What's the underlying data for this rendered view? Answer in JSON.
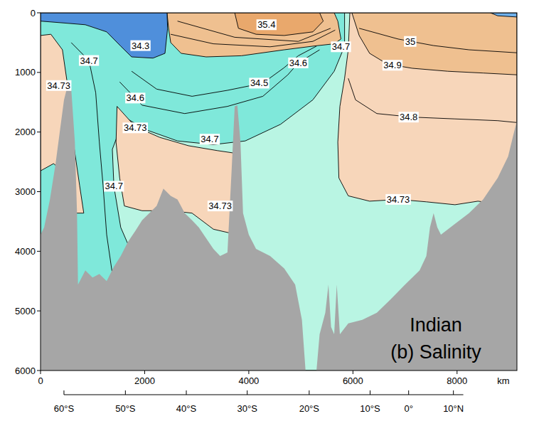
{
  "chart_data": {
    "type": "contour",
    "title": "Indian",
    "subtitle": "(b) Salinity",
    "x_label": "km",
    "xlim": [
      0,
      9150
    ],
    "xticks": [
      0,
      2000,
      4000,
      6000,
      8000
    ],
    "ylim": [
      6000,
      0
    ],
    "yticks": [
      0,
      1000,
      2000,
      3000,
      4000,
      5000,
      6000
    ],
    "x2lim": [
      450,
      8120
    ],
    "x2ticks": [
      {
        "value": 450,
        "label": "60°S"
      },
      {
        "value": 1630,
        "label": "50°S"
      },
      {
        "value": 2800,
        "label": "40°S"
      },
      {
        "value": 3970,
        "label": "30°S"
      },
      {
        "value": 5160,
        "label": "20°S"
      },
      {
        "value": 6330,
        "label": "10°S"
      },
      {
        "value": 7070,
        "label": "0°"
      },
      {
        "value": 7930,
        "label": "10°N"
      }
    ],
    "series": [
      {
        "type": "polygon",
        "color": "#b9f5e3",
        "x": [
          0,
          9150,
          9150,
          0
        ],
        "y": [
          0,
          0,
          6000,
          6000
        ]
      },
      {
        "type": "polygon",
        "color": "#7fe8da",
        "x": [
          0,
          5840,
          5840,
          5640,
          5230,
          4610,
          3930,
          3320,
          2630,
          2020,
          1610,
          1380,
          1410,
          1540,
          1750,
          1820,
          0
        ],
        "y": [
          0,
          0,
          560,
          980,
          1460,
          1870,
          2150,
          2210,
          2150,
          1960,
          1750,
          2290,
          2910,
          3600,
          4020,
          6000,
          6000
        ]
      },
      {
        "type": "polygon",
        "color": "#f7d6ba",
        "x": [
          1470,
          1820,
          2290,
          2840,
          3390,
          3770,
          3770,
          3320,
          2910,
          2500,
          1950,
          1610,
          1520,
          1450
        ],
        "y": [
          1570,
          1910,
          2090,
          2230,
          2310,
          2360,
          3720,
          3630,
          3360,
          3320,
          3320,
          3240,
          2770,
          2170
        ]
      },
      {
        "type": "polygon",
        "color": "#f7d6ba",
        "x": [
          0,
          200,
          420,
          520,
          590,
          750,
          830,
          660,
          420,
          250,
          0
        ],
        "y": [
          380,
          360,
          620,
          1220,
          1930,
          2890,
          3360,
          3360,
          2650,
          2530,
          2650
        ]
      },
      {
        "type": "polygon",
        "color": "#f7d6ba",
        "x": [
          5940,
          9150,
          9150,
          8400,
          7960,
          7410,
          6870,
          6320,
          5910,
          5730,
          5710,
          5750,
          5840,
          5910
        ],
        "y": [
          0,
          0,
          3240,
          3160,
          3220,
          3170,
          3130,
          3160,
          3070,
          2770,
          2170,
          1570,
          1100,
          620
        ]
      },
      {
        "type": "polygon",
        "color": "#efc090",
        "x": [
          5980,
          9150,
          9150,
          8500,
          7820,
          7140,
          6660,
          6320,
          6120
        ],
        "y": [
          0,
          0,
          1040,
          1010,
          980,
          930,
          860,
          680,
          380
        ]
      },
      {
        "type": "polygon",
        "color": "#efc090",
        "x": [
          2430,
          5640,
          5710,
          5770,
          5640,
          5230,
          4680,
          3860,
          3180,
          2700,
          2500,
          2460
        ],
        "y": [
          0,
          0,
          140,
          440,
          520,
          560,
          620,
          720,
          740,
          680,
          500,
          260
        ]
      },
      {
        "type": "polygon",
        "color": "#e9a86c",
        "x": [
          3730,
          5360,
          5430,
          5230,
          4680,
          4140,
          3800
        ],
        "y": [
          0,
          0,
          140,
          320,
          380,
          360,
          260
        ]
      },
      {
        "type": "polygon",
        "color": "#4f8fdb",
        "x": [
          0,
          2430,
          2440,
          2390,
          2160,
          1750,
          1540,
          1270,
          860,
          450,
          0
        ],
        "y": [
          0,
          0,
          260,
          680,
          760,
          740,
          560,
          320,
          200,
          170,
          140
        ]
      },
      {
        "type": "polygon",
        "color": "#6fb0ea",
        "x": [
          8640,
          9150,
          9150,
          8780
        ],
        "y": [
          0,
          0,
          70,
          50
        ]
      },
      {
        "type": "line",
        "color": "#000000",
        "x": [
          1750,
          2230,
          2910,
          3590,
          4270,
          4680,
          4950,
          5300
        ],
        "y": [
          980,
          1280,
          1400,
          1300,
          1180,
          920,
          720,
          560
        ]
      },
      {
        "type": "line",
        "color": "#000000",
        "x": [
          1520,
          1950,
          2770,
          3590,
          4270,
          4750,
          4950,
          5360
        ],
        "y": [
          1160,
          1550,
          1690,
          1570,
          1400,
          1040,
          840,
          620
        ]
      },
      {
        "type": "line",
        "color": "#000000",
        "x": [
          590,
          930,
          1060,
          1130,
          1200,
          1270,
          1410
        ],
        "y": [
          500,
          800,
          1340,
          2170,
          2890,
          3720,
          4560
        ]
      },
      {
        "type": "line",
        "color": "#000000",
        "x": [
          5910,
          6050,
          6460,
          7140,
          7960,
          8780,
          9150
        ],
        "y": [
          1100,
          1460,
          1690,
          1750,
          1780,
          1810,
          1840
        ]
      },
      {
        "type": "line",
        "color": "#000000",
        "x": [
          6120,
          6870,
          7550,
          8230,
          9150
        ],
        "y": [
          260,
          440,
          550,
          620,
          670
        ]
      },
      {
        "type": "line",
        "color": "#000000",
        "x": [
          2500,
          3320,
          4410,
          5230,
          5660
        ],
        "y": [
          360,
          520,
          570,
          480,
          290
        ]
      },
      {
        "type": "line",
        "color": "#000000",
        "x": [
          2630,
          3730,
          4950,
          5570
        ],
        "y": [
          140,
          410,
          480,
          260
        ]
      },
      {
        "type": "area",
        "color": "#a6a6a6",
        "x": [
          0,
          70,
          180,
          290,
          380,
          450,
          520,
          590,
          660,
          700,
          720,
          860,
          1000,
          1130,
          1270,
          1410,
          1540,
          1680,
          1820,
          1950,
          2090,
          2230,
          2360,
          2500,
          2630,
          2770,
          2910,
          3040,
          3180,
          3320,
          3450,
          3590,
          3670,
          3730,
          3780,
          3840,
          3890,
          4000,
          4140,
          4410,
          4680,
          4890,
          5020,
          5090,
          5300,
          5360,
          5470,
          5530,
          5580,
          5640,
          5690,
          5750,
          5910,
          6180,
          6460,
          6730,
          7000,
          7280,
          7410,
          7480,
          7550,
          7620,
          7690,
          7960,
          8230,
          8500,
          8780,
          8980,
          9080,
          9150
        ],
        "y": [
          3720,
          3600,
          3130,
          2530,
          1930,
          1460,
          1220,
          1280,
          2170,
          3360,
          4560,
          4320,
          4440,
          4380,
          4500,
          4260,
          4080,
          3840,
          3660,
          3480,
          3360,
          3240,
          2950,
          3070,
          3130,
          3360,
          3480,
          3600,
          3780,
          3960,
          4080,
          4020,
          2650,
          1570,
          1550,
          2170,
          3360,
          3720,
          3960,
          4080,
          4290,
          4560,
          5150,
          6000,
          6000,
          5390,
          5030,
          4560,
          5270,
          5390,
          4560,
          5390,
          5210,
          5150,
          5030,
          4800,
          4560,
          4320,
          4080,
          3600,
          3360,
          3600,
          3720,
          3540,
          3360,
          3130,
          2770,
          2410,
          2050,
          1810
        ]
      }
    ],
    "annotations": [
      {
        "text": "35.4",
        "x": 4340,
        "y": 200
      },
      {
        "text": "34.3",
        "x": 1920,
        "y": 550
      },
      {
        "text": "34.7",
        "x": 5770,
        "y": 570
      },
      {
        "text": "35",
        "x": 7100,
        "y": 480
      },
      {
        "text": "34.7",
        "x": 930,
        "y": 800
      },
      {
        "text": "34.6",
        "x": 4950,
        "y": 840
      },
      {
        "text": "34.9",
        "x": 6760,
        "y": 880
      },
      {
        "text": "34.73",
        "x": 350,
        "y": 1220
      },
      {
        "text": "34.5",
        "x": 4200,
        "y": 1180
      },
      {
        "text": "34.6",
        "x": 1820,
        "y": 1430
      },
      {
        "text": "34.8",
        "x": 7070,
        "y": 1750
      },
      {
        "text": "34.73",
        "x": 1820,
        "y": 1930
      },
      {
        "text": "34.7",
        "x": 3250,
        "y": 2120
      },
      {
        "text": "34.7",
        "x": 1410,
        "y": 2910
      },
      {
        "text": "34.73",
        "x": 3450,
        "y": 3240
      },
      {
        "text": "34.73",
        "x": 6870,
        "y": 3130
      }
    ]
  }
}
